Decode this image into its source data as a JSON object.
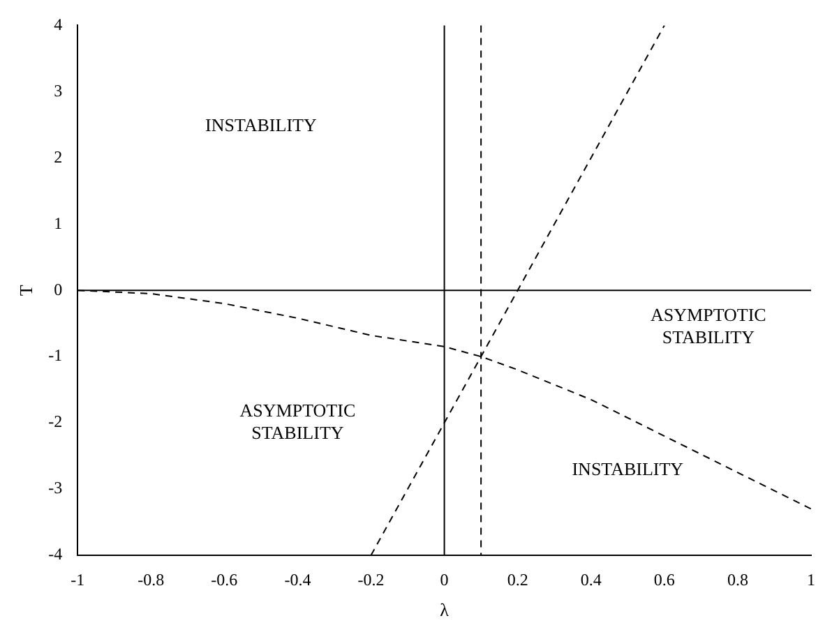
{
  "chart_data": {
    "type": "line",
    "xlabel": "λ",
    "ylabel": "T",
    "xlim": [
      -1,
      1
    ],
    "xticks": [
      -1,
      -0.8,
      -0.6,
      -0.4,
      -0.2,
      0,
      0.2,
      0.4,
      0.6,
      0.8,
      1
    ],
    "ylim": [
      -4,
      4
    ],
    "yticks": [
      -4,
      -3,
      -2,
      -1,
      0,
      1,
      2,
      3,
      4
    ],
    "grid": false,
    "legend": false,
    "marker": "none",
    "series": [
      {
        "color": "#000000",
        "line_style": "dashed",
        "x": [
          -1,
          -0.8,
          -0.6,
          -0.4,
          -0.2,
          0,
          0.1,
          0.2,
          0.4,
          0.6,
          0.8,
          1
        ],
        "values": [
          0,
          -0.05,
          -0.2,
          -0.42,
          -0.68,
          -0.85,
          -1,
          -1.2,
          -1.65,
          -2.2,
          -2.75,
          -3.3
        ]
      },
      {
        "color": "#000000",
        "line_style": "dashed",
        "x": [
          -0.2,
          0.6
        ],
        "values": [
          -4,
          4
        ]
      }
    ],
    "ref_lines": [
      {
        "axis": "x",
        "value": 0,
        "color": "#000000",
        "line_style": "solid"
      },
      {
        "axis": "x",
        "value": 0.1,
        "color": "#000000",
        "line_style": "dashed"
      },
      {
        "axis": "y",
        "value": 0,
        "color": "#000000",
        "line_style": "solid"
      }
    ],
    "annotations": [
      "INSTABILITY",
      "INSTABILITY",
      "ASYMPTOTIC\nSTABILITY",
      "ASYMPTOTIC\nSTABILITY"
    ]
  }
}
